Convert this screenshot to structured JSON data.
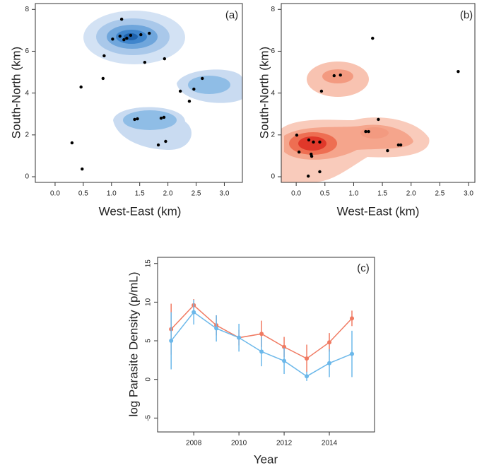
{
  "chart_data": [
    {
      "type": "scatter",
      "label": "(a)",
      "xlabel": "West-East (km)",
      "ylabel": "South-North (km)",
      "xlim": [
        -0.35,
        3.32
      ],
      "ylim": [
        -0.27,
        8.28
      ],
      "xticks": [
        {
          "value": 0,
          "label": "0.0"
        },
        0.5,
        {
          "value": 1,
          "label": "1.0"
        },
        1.5,
        {
          "value": 2,
          "label": "2.0"
        },
        2.5,
        {
          "value": 3,
          "label": "3.0"
        }
      ],
      "yticks": [
        0,
        2,
        4,
        6,
        8
      ],
      "series": [
        {
          "color": "#000000",
          "x": [
            1.18,
            1.67,
            1.52,
            1.34,
            1.15,
            1.27,
            1.22,
            1.02,
            0.87,
            1.94,
            1.59,
            0.85,
            0.46,
            2.61,
            2.22,
            2.46,
            2.38,
            1.41,
            1.46,
            1.88,
            1.93,
            1.83,
            1.96,
            0.3,
            0.48
          ],
          "values": [
            7.53,
            6.86,
            6.79,
            6.76,
            6.72,
            6.62,
            6.55,
            6.58,
            5.78,
            5.64,
            5.47,
            4.7,
            4.29,
            4.7,
            4.09,
            4.19,
            3.61,
            2.74,
            2.77,
            2.8,
            2.84,
            1.52,
            1.69,
            1.62,
            0.37
          ]
        }
      ]
    },
    {
      "type": "scatter",
      "label": "(b)",
      "xlabel": "West-East (km)",
      "ylabel": "South-North (km)",
      "xlim": [
        -0.26,
        3.11
      ],
      "ylim": [
        -0.27,
        8.28
      ],
      "xticks": [
        {
          "value": 0,
          "label": "0.0"
        },
        0.5,
        {
          "value": 1,
          "label": "1.0"
        },
        1.5,
        {
          "value": 2,
          "label": "2.0"
        },
        2.5,
        {
          "value": 3,
          "label": "3.0"
        }
      ],
      "yticks": [
        0,
        2,
        4,
        6,
        8
      ],
      "series": [
        {
          "color": "#000000",
          "x": [
            1.33,
            2.82,
            0.66,
            0.77,
            0.44,
            1.43,
            1.21,
            1.26,
            0.01,
            0.22,
            0.3,
            0.41,
            1.78,
            1.82,
            1.59,
            0.05,
            0.26,
            0.27,
            0.41,
            0.21
          ],
          "values": [
            6.62,
            5.03,
            4.83,
            4.86,
            4.09,
            2.74,
            2.16,
            2.16,
            1.99,
            1.76,
            1.66,
            1.66,
            1.52,
            1.52,
            1.25,
            1.18,
            1.08,
            0.98,
            0.24,
            0.03
          ]
        }
      ]
    },
    {
      "type": "line",
      "label": "(c)",
      "xlabel": "Year",
      "ylabel": "log Parasite Density (p/mL)",
      "xlim": [
        2006.4,
        2016
      ],
      "ylim": [
        -6.8,
        15.8
      ],
      "xticks": [
        2008,
        2010,
        2012,
        2014
      ],
      "yticks": [
        -5,
        0,
        5,
        10,
        15
      ],
      "x": [
        2007,
        2008,
        2009,
        2010,
        2011,
        2012,
        2013,
        2014,
        2015
      ],
      "series": [
        {
          "color": "#f07a62",
          "values": [
            6.5,
            9.6,
            7.0,
            5.4,
            5.9,
            4.2,
            2.7,
            4.8,
            7.9
          ],
          "errors": [
            3.3,
            0.8,
            1.3,
            1.0,
            1.7,
            1.3,
            1.8,
            1.2,
            1.0
          ]
        },
        {
          "color": "#6cb8ea",
          "values": [
            5.0,
            8.7,
            6.6,
            5.4,
            3.6,
            2.4,
            0.4,
            2.1,
            3.3
          ],
          "errors": [
            3.7,
            1.6,
            1.7,
            1.8,
            1.9,
            1.7,
            0.6,
            1.8,
            3.0
          ]
        }
      ]
    }
  ]
}
